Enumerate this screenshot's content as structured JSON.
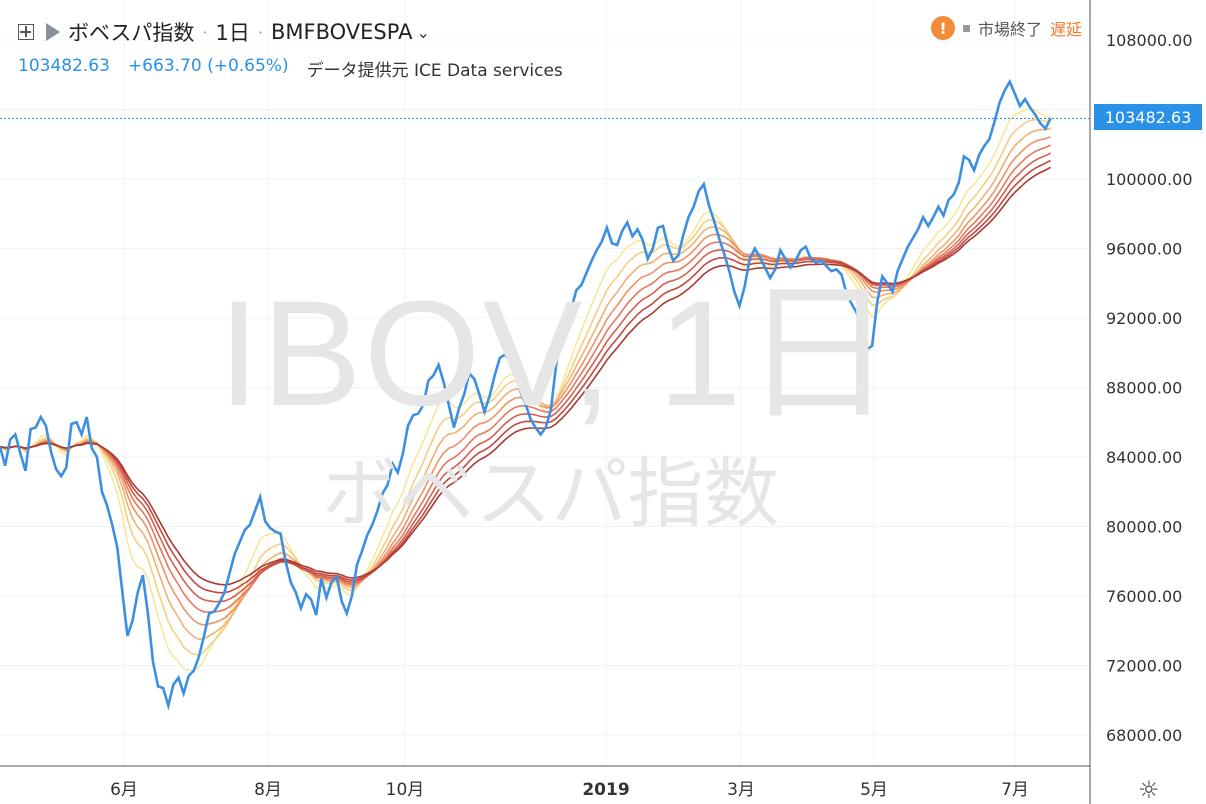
{
  "header": {
    "symbol_name": "ボベスパ指数",
    "interval": "1日",
    "exchange_symbol": "BMFBOVESPA",
    "separator": "·"
  },
  "quote": {
    "last": "103482.63",
    "change": "+663.70 (+0.65%)",
    "data_source": "データ提供元 ICE Data services"
  },
  "status": {
    "warning_symbol": "!",
    "market_status": "市場終了",
    "delay_label": "遅延"
  },
  "watermark": {
    "line1": "IBOV, 1日",
    "line2": "ボベスパ指数"
  },
  "price_tag": "103482.63",
  "colors": {
    "price_line": "#3d8fe2",
    "ribbon": [
      "#f6e89a",
      "#f5cf80",
      "#f2b070",
      "#ee9266",
      "#e5775c",
      "#d55e4f",
      "#c04a40",
      "#a83a33"
    ],
    "warning": "#f28c38",
    "delay": "#f07a2a"
  },
  "chart_data": {
    "type": "line",
    "x_ticks": [
      "6月",
      "8月",
      "10月",
      "2019",
      "3月",
      "5月",
      "7月"
    ],
    "y_ticks": [
      "108000.00",
      "104000.00",
      "100000.00",
      "96000.00",
      "92000.00",
      "88000.00",
      "84000.00",
      "80000.00",
      "76000.00",
      "72000.00",
      "68000.00"
    ],
    "ylim": [
      66000,
      110000
    ],
    "last_value": 103482.63,
    "series": [
      {
        "values": [
          84600,
          83500,
          85000,
          85300,
          84200,
          83200,
          85600,
          85700,
          86300,
          85800,
          84300,
          83300,
          82900,
          83400,
          85900,
          86000,
          85300,
          86300,
          84500,
          84000,
          82000,
          81200,
          80100,
          78800,
          76200,
          73700,
          74600,
          76200,
          77200,
          75000,
          72200,
          70800,
          70700,
          69700,
          70900,
          71300,
          70400,
          71400,
          71700,
          72500,
          73700,
          75000,
          75100,
          75600,
          76200,
          77300,
          78400,
          79100,
          79800,
          80100,
          80900,
          81700,
          80300,
          79900,
          79700,
          79600,
          78000,
          76800,
          76200,
          75300,
          76100,
          75800,
          74900,
          77000,
          75900,
          76800,
          77100,
          75700,
          75000,
          76000,
          77800,
          78600,
          79500,
          80100,
          80900,
          81900,
          82400,
          83600,
          83100,
          84200,
          85800,
          86400,
          86500,
          87000,
          88400,
          88700,
          89300,
          88300,
          87000,
          85700,
          86800,
          87600,
          88800,
          88500,
          87600,
          86600,
          87500,
          88700,
          89700,
          89900,
          89500,
          88900,
          87800,
          87100,
          86200,
          85700,
          85300,
          85700,
          86700,
          89200,
          91000,
          91800,
          92500,
          93600,
          93900,
          94600,
          95300,
          95900,
          96400,
          97200,
          96300,
          96200,
          97000,
          97500,
          96700,
          97100,
          96500,
          95400,
          96000,
          97200,
          97300,
          96100,
          95300,
          95600,
          96800,
          97800,
          98400,
          99300,
          99700,
          98500,
          97600,
          96600,
          95700,
          94700,
          93500,
          92700,
          93800,
          95400,
          96000,
          95500,
          94900,
          94300,
          94800,
          95900,
          95400,
          94900,
          95300,
          95900,
          96100,
          95400,
          95200,
          95300,
          95000,
          94700,
          94800,
          94500,
          93400,
          92800,
          92300,
          91100,
          90200,
          90400,
          92900,
          94400,
          94000,
          93500,
          94700,
          95400,
          96100,
          96600,
          97100,
          97800,
          97300,
          97800,
          98400,
          97900,
          98800,
          99100,
          99800,
          101300,
          101100,
          100500,
          101400,
          101900,
          102300,
          103300,
          104400,
          105100,
          105600,
          104900,
          104200,
          104600,
          104100,
          103700,
          103200,
          102900,
          103500
        ],
        "sample_step": 5.1
      }
    ]
  }
}
